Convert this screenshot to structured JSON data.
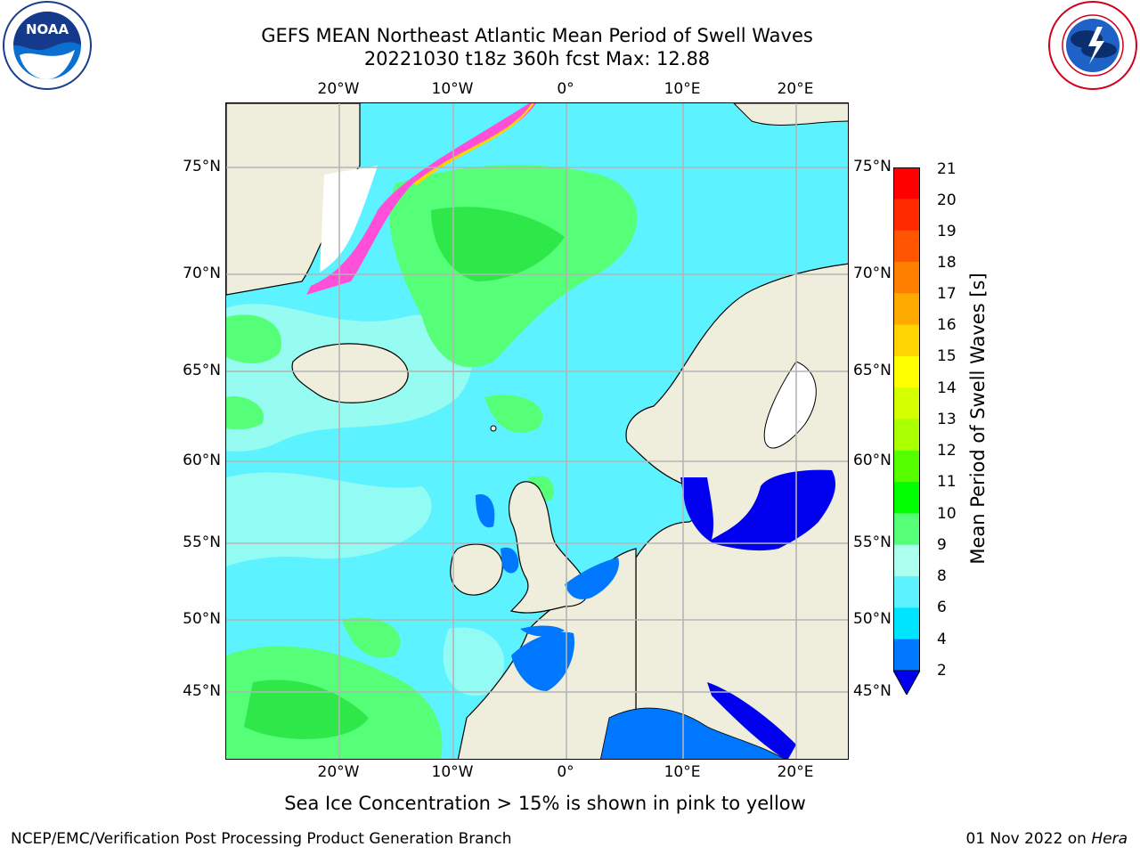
{
  "header": {
    "title_line1": "GEFS MEAN Northeast Atlantic Mean Period of Swell Waves",
    "title_line2": "20221030 t18z 360h fcst   Max: 12.88"
  },
  "logos": {
    "left": "noaa-logo",
    "right": "nws-logo"
  },
  "map": {
    "lon_labels": [
      "20°W",
      "10°W",
      "0°",
      "10°E",
      "20°E"
    ],
    "lat_labels": [
      "75°N",
      "70°N",
      "65°N",
      "60°N",
      "55°N",
      "50°N",
      "45°N"
    ],
    "water_color": "#5cf2ff",
    "land_color": "#efeddb"
  },
  "colorbar": {
    "label": "Mean Period of Swell Waves [s]",
    "ticks": [
      "21",
      "20",
      "19",
      "18",
      "17",
      "16",
      "15",
      "14",
      "13",
      "12",
      "11",
      "10",
      "9",
      "8",
      "6",
      "4",
      "2"
    ],
    "colors": [
      "#ff0000",
      "#ff2a00",
      "#ff5500",
      "#ff8000",
      "#ffaa00",
      "#ffd400",
      "#ffff00",
      "#d4ff00",
      "#aaff00",
      "#55ff00",
      "#00ff00",
      "#55ff77",
      "#aaffee",
      "#5cf2ff",
      "#00e5ff",
      "#0077ff"
    ],
    "extend_color": "#0000ee"
  },
  "footnote": "Sea Ice Concentration > 15% is shown in pink to yellow",
  "footer": {
    "left": "NCEP/EMC/Verification Post Processing Product Generation Branch",
    "right_date": "01 Nov 2022 on",
    "right_host": "Hera"
  }
}
